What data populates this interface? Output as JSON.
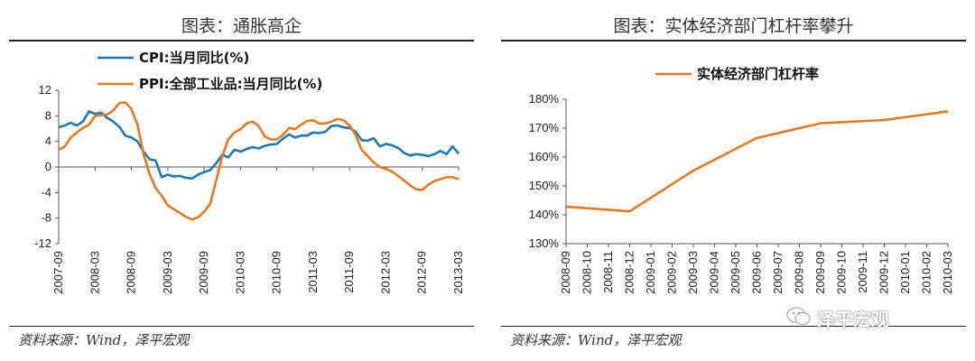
{
  "left_panel": {
    "title": "图表：通胀高企",
    "source": "资料来源：Wind，泽平宏观"
  },
  "right_panel": {
    "title": "图表：实体经济部门杠杆率攀升",
    "source": "资料来源：Wind，泽平宏观"
  },
  "watermark": "泽平宏观",
  "colors": {
    "cpi": "#1f77b4",
    "ppi": "#e8781e",
    "leverage": "#e8781e",
    "rule": "#222222"
  },
  "chart_data": [
    {
      "type": "line",
      "ylim": [
        -12,
        12
      ],
      "yticks": [
        12,
        8,
        4,
        0,
        -4,
        -8,
        -12
      ],
      "x_tick_labels": [
        "2007-09",
        "2008-03",
        "2008-09",
        "2009-03",
        "2009-09",
        "2010-03",
        "2010-09",
        "2011-03",
        "2011-09",
        "2012-03",
        "2012-09",
        "2013-03"
      ],
      "legend_position": "top-left",
      "series": [
        {
          "name": "CPI:当月同比(%)",
          "color": "#1f77b4",
          "x": [
            "2007-09",
            "2007-10",
            "2007-11",
            "2007-12",
            "2008-01",
            "2008-02",
            "2008-03",
            "2008-04",
            "2008-05",
            "2008-06",
            "2008-07",
            "2008-08",
            "2008-09",
            "2008-10",
            "2008-11",
            "2008-12",
            "2009-01",
            "2009-02",
            "2009-03",
            "2009-04",
            "2009-05",
            "2009-06",
            "2009-07",
            "2009-08",
            "2009-09",
            "2009-10",
            "2009-11",
            "2009-12",
            "2010-01",
            "2010-02",
            "2010-03",
            "2010-04",
            "2010-05",
            "2010-06",
            "2010-07",
            "2010-08",
            "2010-09",
            "2010-10",
            "2010-11",
            "2010-12",
            "2011-01",
            "2011-02",
            "2011-03",
            "2011-04",
            "2011-05",
            "2011-06",
            "2011-07",
            "2011-08",
            "2011-09",
            "2011-10",
            "2011-11",
            "2011-12",
            "2012-01",
            "2012-02",
            "2012-03",
            "2012-04",
            "2012-05",
            "2012-06",
            "2012-07",
            "2012-08",
            "2012-09",
            "2012-10",
            "2012-11",
            "2012-12",
            "2013-01",
            "2013-02",
            "2013-03"
          ],
          "values": [
            6.2,
            6.5,
            6.9,
            6.5,
            7.1,
            8.7,
            8.3,
            8.5,
            7.7,
            7.1,
            6.3,
            4.9,
            4.6,
            4.0,
            2.4,
            1.2,
            1.0,
            -1.6,
            -1.2,
            -1.5,
            -1.4,
            -1.7,
            -1.8,
            -1.2,
            -0.8,
            -0.5,
            0.6,
            1.9,
            1.5,
            2.7,
            2.4,
            2.8,
            3.1,
            2.9,
            3.3,
            3.5,
            3.6,
            4.4,
            5.1,
            4.6,
            4.9,
            4.9,
            5.4,
            5.3,
            5.5,
            6.4,
            6.5,
            6.2,
            6.1,
            5.5,
            4.2,
            4.1,
            4.5,
            3.2,
            3.6,
            3.4,
            3.0,
            2.2,
            1.8,
            2.0,
            1.9,
            1.7,
            2.0,
            2.5,
            2.0,
            3.2,
            2.1
          ]
        },
        {
          "name": "PPI:全部工业品:当月同比(%)",
          "color": "#e8781e",
          "x": [
            "2007-09",
            "2007-10",
            "2007-11",
            "2007-12",
            "2008-01",
            "2008-02",
            "2008-03",
            "2008-04",
            "2008-05",
            "2008-06",
            "2008-07",
            "2008-08",
            "2008-09",
            "2008-10",
            "2008-11",
            "2008-12",
            "2009-01",
            "2009-02",
            "2009-03",
            "2009-04",
            "2009-05",
            "2009-06",
            "2009-07",
            "2009-08",
            "2009-09",
            "2009-10",
            "2009-11",
            "2009-12",
            "2010-01",
            "2010-02",
            "2010-03",
            "2010-04",
            "2010-05",
            "2010-06",
            "2010-07",
            "2010-08",
            "2010-09",
            "2010-10",
            "2010-11",
            "2010-12",
            "2011-01",
            "2011-02",
            "2011-03",
            "2011-04",
            "2011-05",
            "2011-06",
            "2011-07",
            "2011-08",
            "2011-09",
            "2011-10",
            "2011-11",
            "2011-12",
            "2012-01",
            "2012-02",
            "2012-03",
            "2012-04",
            "2012-05",
            "2012-06",
            "2012-07",
            "2012-08",
            "2012-09",
            "2012-10",
            "2012-11",
            "2012-12",
            "2013-01",
            "2013-02",
            "2013-03"
          ],
          "values": [
            2.7,
            3.2,
            4.6,
            5.4,
            6.1,
            6.6,
            8.0,
            8.1,
            8.2,
            8.8,
            10.0,
            10.1,
            9.1,
            6.6,
            2.0,
            -1.1,
            -3.3,
            -4.5,
            -6.0,
            -6.6,
            -7.2,
            -7.8,
            -8.2,
            -7.9,
            -7.0,
            -5.8,
            -2.1,
            1.7,
            4.3,
            5.4,
            5.9,
            6.8,
            7.1,
            6.4,
            4.8,
            4.3,
            4.3,
            5.0,
            6.1,
            5.9,
            6.6,
            7.2,
            7.3,
            6.8,
            6.8,
            7.1,
            7.5,
            7.3,
            6.5,
            5.0,
            2.7,
            1.7,
            0.7,
            0.0,
            -0.3,
            -0.7,
            -1.4,
            -2.1,
            -2.9,
            -3.5,
            -3.6,
            -2.8,
            -2.2,
            -1.9,
            -1.6,
            -1.6,
            -1.9
          ]
        }
      ]
    },
    {
      "type": "line",
      "ylim": [
        1.3,
        1.8
      ],
      "yticks": [
        "180%",
        "170%",
        "160%",
        "150%",
        "140%",
        "130%"
      ],
      "categories": [
        "2008-09",
        "2008-10",
        "2008-11",
        "2008-12",
        "2009-01",
        "2009-02",
        "2009-03",
        "2009-04",
        "2009-05",
        "2009-06",
        "2009-07",
        "2009-08",
        "2009-09",
        "2009-10",
        "2009-11",
        "2009-12",
        "2010-01",
        "2010-02",
        "2010-03"
      ],
      "legend_position": "top-left",
      "series": [
        {
          "name": "实体经济部门杠杆率",
          "color": "#e8781e",
          "x": [
            "2008-09",
            "2008-12",
            "2009-03",
            "2009-06",
            "2009-09",
            "2009-12",
            "2010-03"
          ],
          "values": [
            1.428,
            1.412,
            1.553,
            1.666,
            1.717,
            1.728,
            1.758
          ]
        }
      ]
    }
  ]
}
